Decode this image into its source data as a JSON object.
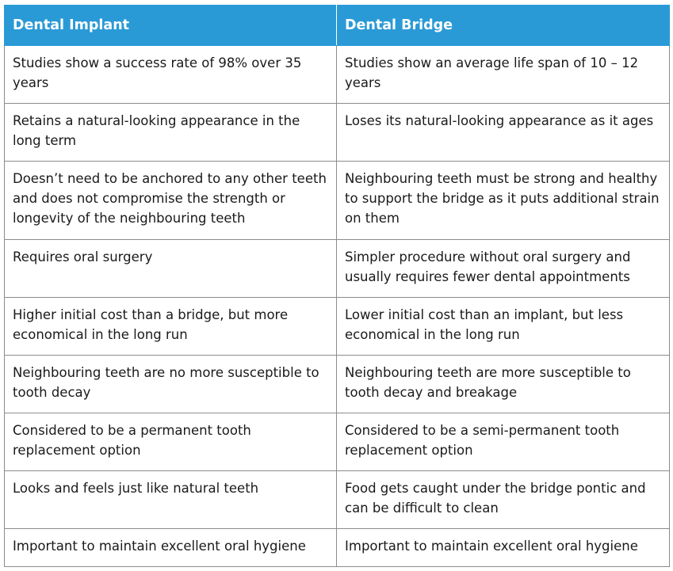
{
  "table": {
    "headers": [
      "Dental Implant",
      "Dental Bridge"
    ],
    "rows": [
      [
        "Studies show a success rate of 98% over 35 years",
        "Studies show an average life span of 10 – 12 years"
      ],
      [
        "Retains a natural-looking appearance in the long term",
        "Loses its natural-looking appearance as it ages"
      ],
      [
        "Doesn’t need to be anchored to any other teeth and does not compromise the strength or longevity of the neighbouring teeth",
        "Neighbouring teeth must be strong and healthy to support the bridge as it puts additional strain on them"
      ],
      [
        "Requires oral surgery",
        "Simpler procedure without oral surgery and usually requires fewer dental appointments"
      ],
      [
        "Higher initial cost than a bridge, but more economical in the long run",
        "Lower initial cost than an implant, but less economical in the long run"
      ],
      [
        "Neighbouring teeth are no more susceptible to tooth decay",
        "Neighbouring teeth are more susceptible to tooth decay and breakage"
      ],
      [
        "Considered to be a permanent tooth replacement option",
        "Considered to be a semi-permanent tooth replacement option"
      ],
      [
        "Looks and feels just like natural teeth",
        "Food gets caught under the bridge pontic and can be difficult to clean"
      ],
      [
        "Important to maintain excellent oral hygiene",
        "Important to maintain excellent oral hygiene"
      ]
    ]
  },
  "colors": {
    "header_bg": "#2a9ad6",
    "header_text": "#ffffff",
    "border": "#8c8c8c",
    "body_text": "#1a1a1a"
  }
}
